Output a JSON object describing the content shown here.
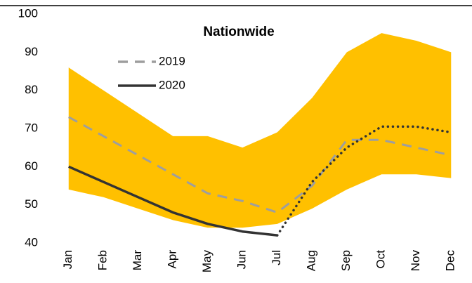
{
  "chart_data": {
    "type": "line",
    "subtitle": "Nationwide",
    "categories": [
      "Jan",
      "Feb",
      "Mar",
      "Apr",
      "May",
      "Jun",
      "Jul",
      "Aug",
      "Sep",
      "Oct",
      "Nov",
      "Dec"
    ],
    "band": {
      "color": "#ffc000",
      "upper": [
        86,
        80,
        74,
        68,
        68,
        65,
        69,
        78,
        90,
        95,
        93,
        90
      ],
      "lower": [
        54,
        52,
        49,
        46,
        44,
        44,
        45,
        49,
        54,
        58,
        58,
        57
      ]
    },
    "series": [
      {
        "name": "2019",
        "color": "#9e9e9e",
        "dash": "dashed",
        "values": [
          73,
          68,
          63,
          58,
          53,
          51,
          48,
          55,
          67,
          67,
          65,
          63
        ]
      },
      {
        "name": "2020",
        "color": "#333333",
        "dash": "solid",
        "values": [
          60,
          56,
          52,
          48,
          45,
          43,
          42,
          null,
          null,
          null,
          null,
          null
        ]
      },
      {
        "color": "#333333",
        "dash": "dotted",
        "values": [
          null,
          null,
          null,
          null,
          null,
          null,
          42,
          56,
          65,
          70.5,
          70.5,
          69
        ]
      }
    ],
    "ylim": [
      40,
      100
    ],
    "yticks": [
      40,
      50,
      60,
      70,
      80,
      90,
      100
    ],
    "grid": false,
    "legend": "upper left"
  }
}
